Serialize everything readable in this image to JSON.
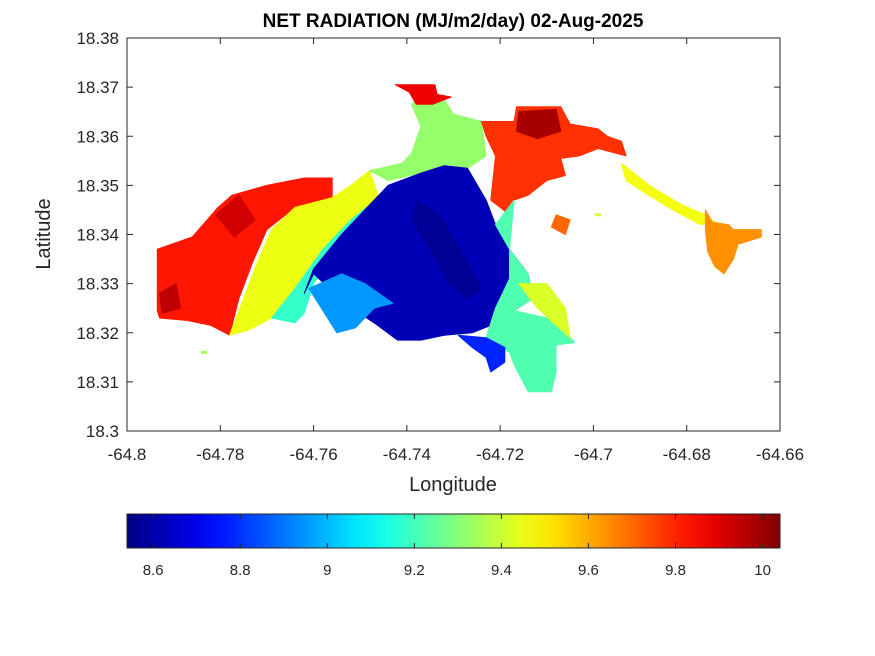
{
  "chart_data": {
    "type": "heatmap",
    "title": "NET RADIATION (MJ/m2/day) 02-Aug-2025",
    "xlabel": "Longitude",
    "ylabel": "Latitude",
    "xlim": [
      -64.8,
      -64.66
    ],
    "ylim": [
      18.3,
      18.38
    ],
    "x_ticks": [
      -64.8,
      -64.78,
      -64.76,
      -64.74,
      -64.72,
      -64.7,
      -64.68,
      -64.66
    ],
    "x_tick_labels": [
      "-64.8",
      "-64.78",
      "-64.76",
      "-64.74",
      "-64.72",
      "-64.7",
      "-64.68",
      "-64.66"
    ],
    "y_ticks": [
      18.3,
      18.31,
      18.32,
      18.33,
      18.34,
      18.35,
      18.36,
      18.37,
      18.38
    ],
    "y_tick_labels": [
      "18.3",
      "18.31",
      "18.32",
      "18.33",
      "18.34",
      "18.35",
      "18.36",
      "18.37",
      "18.38"
    ],
    "colormap": "jet",
    "color_range": [
      8.54,
      10.04
    ],
    "colorbar": {
      "location": "below",
      "ticks": [
        8.6,
        8.8,
        9.0,
        9.2,
        9.4,
        9.6,
        9.8,
        10.0
      ],
      "tick_labels": [
        "8.6",
        "8.8",
        "9",
        "9.2",
        "9.4",
        "9.6",
        "9.8",
        "10"
      ]
    },
    "grid": false,
    "regions": [
      {
        "name": "west",
        "value": 9.82,
        "polygon": [
          [
            -64.7935,
            18.3245
          ],
          [
            -64.7935,
            18.337
          ],
          [
            -64.786,
            18.3395
          ],
          [
            -64.7805,
            18.3455
          ],
          [
            -64.7775,
            18.348
          ],
          [
            -64.77,
            18.35
          ],
          [
            -64.762,
            18.3515
          ],
          [
            -64.756,
            18.3515
          ],
          [
            -64.756,
            18.3475
          ],
          [
            -64.764,
            18.3455
          ],
          [
            -64.77,
            18.341
          ],
          [
            -64.773,
            18.3345
          ],
          [
            -64.776,
            18.327
          ],
          [
            -64.778,
            18.3195
          ],
          [
            -64.782,
            18.3215
          ],
          [
            -64.787,
            18.3225
          ],
          [
            -64.793,
            18.323
          ]
        ]
      },
      {
        "name": "west-inner",
        "value": 9.95,
        "polygon": [
          [
            -64.793,
            18.328
          ],
          [
            -64.7895,
            18.33
          ],
          [
            -64.7885,
            18.325
          ],
          [
            -64.7925,
            18.324
          ]
        ]
      },
      {
        "name": "west-northwest",
        "value": 9.92,
        "polygon": [
          [
            -64.781,
            18.344
          ],
          [
            -64.776,
            18.348
          ],
          [
            -64.7725,
            18.343
          ],
          [
            -64.777,
            18.3395
          ]
        ]
      },
      {
        "name": "west-transition",
        "value": 9.45,
        "polygon": [
          [
            -64.778,
            18.3195
          ],
          [
            -64.775,
            18.327
          ],
          [
            -64.772,
            18.3345
          ],
          [
            -64.769,
            18.341
          ],
          [
            -64.764,
            18.3455
          ],
          [
            -64.756,
            18.3475
          ],
          [
            -64.752,
            18.35
          ],
          [
            -64.748,
            18.353
          ],
          [
            -64.746,
            18.3475
          ],
          [
            -64.752,
            18.343
          ],
          [
            -64.758,
            18.337
          ],
          [
            -64.764,
            18.329
          ],
          [
            -64.769,
            18.323
          ],
          [
            -64.774,
            18.3205
          ]
        ]
      },
      {
        "name": "west-cyan",
        "value": 9.18,
        "polygon": [
          [
            -64.769,
            18.323
          ],
          [
            -64.764,
            18.329
          ],
          [
            -64.758,
            18.337
          ],
          [
            -64.752,
            18.343
          ],
          [
            -64.746,
            18.3475
          ],
          [
            -64.744,
            18.35
          ],
          [
            -64.753,
            18.34
          ],
          [
            -64.76,
            18.33
          ],
          [
            -64.762,
            18.324
          ],
          [
            -64.764,
            18.322
          ]
        ]
      },
      {
        "name": "north-tab",
        "value": 9.32,
        "polygon": [
          [
            -64.748,
            18.353
          ],
          [
            -64.741,
            18.3545
          ],
          [
            -64.739,
            18.3565
          ],
          [
            -64.737,
            18.362
          ],
          [
            -64.739,
            18.3665
          ],
          [
            -64.736,
            18.369
          ],
          [
            -64.732,
            18.3675
          ],
          [
            -64.73,
            18.3645
          ],
          [
            -64.724,
            18.363
          ],
          [
            -64.723,
            18.356
          ],
          [
            -64.727,
            18.3535
          ],
          [
            -64.732,
            18.354
          ],
          [
            -64.737,
            18.3525
          ],
          [
            -64.744,
            18.351
          ]
        ]
      },
      {
        "name": "north-tip",
        "value": 9.88,
        "polygon": [
          [
            -64.7425,
            18.3705
          ],
          [
            -64.734,
            18.3705
          ],
          [
            -64.7335,
            18.3685
          ],
          [
            -64.7305,
            18.368
          ],
          [
            -64.7345,
            18.3665
          ],
          [
            -64.738,
            18.3665
          ],
          [
            -64.7395,
            18.369
          ]
        ]
      },
      {
        "name": "northeast",
        "value": 9.78,
        "polygon": [
          [
            -64.724,
            18.363
          ],
          [
            -64.717,
            18.363
          ],
          [
            -64.7165,
            18.366
          ],
          [
            -64.707,
            18.366
          ],
          [
            -64.705,
            18.3625
          ],
          [
            -64.699,
            18.3615
          ],
          [
            -64.697,
            18.36
          ],
          [
            -64.694,
            18.359
          ],
          [
            -64.693,
            18.356
          ],
          [
            -64.699,
            18.3575
          ],
          [
            -64.703,
            18.356
          ],
          [
            -64.707,
            18.3555
          ],
          [
            -64.706,
            18.352
          ],
          [
            -64.71,
            18.351
          ],
          [
            -64.714,
            18.348
          ],
          [
            -64.717,
            18.347
          ],
          [
            -64.718,
            18.344
          ],
          [
            -64.722,
            18.347
          ],
          [
            -64.721,
            18.356
          ],
          [
            -64.723,
            18.36
          ]
        ]
      },
      {
        "name": "northeast-peak",
        "value": 9.98,
        "polygon": [
          [
            -64.716,
            18.365
          ],
          [
            -64.708,
            18.3655
          ],
          [
            -64.707,
            18.361
          ],
          [
            -64.712,
            18.3595
          ],
          [
            -64.7165,
            18.361
          ]
        ]
      },
      {
        "name": "northeast-spur",
        "value": 9.7,
        "polygon": [
          [
            -64.708,
            18.344
          ],
          [
            -64.705,
            18.343
          ],
          [
            -64.706,
            18.34
          ],
          [
            -64.709,
            18.3415
          ]
        ]
      },
      {
        "name": "east-strip",
        "value": 9.46,
        "polygon": [
          [
            -64.694,
            18.3545
          ],
          [
            -64.688,
            18.35
          ],
          [
            -64.681,
            18.346
          ],
          [
            -64.676,
            18.344
          ],
          [
            -64.674,
            18.3425
          ],
          [
            -64.677,
            18.342
          ],
          [
            -64.683,
            18.345
          ],
          [
            -64.689,
            18.3485
          ],
          [
            -64.693,
            18.351
          ]
        ]
      },
      {
        "name": "east-lobe",
        "value": 9.64,
        "polygon": [
          [
            -64.676,
            18.345
          ],
          [
            -64.6745,
            18.3425
          ],
          [
            -64.671,
            18.342
          ],
          [
            -64.67,
            18.341
          ],
          [
            -64.664,
            18.341
          ],
          [
            -64.664,
            18.3395
          ],
          [
            -64.669,
            18.338
          ],
          [
            -64.67,
            18.335
          ],
          [
            -64.672,
            18.332
          ],
          [
            -64.674,
            18.3335
          ],
          [
            -64.6755,
            18.3365
          ],
          [
            -64.676,
            18.341
          ]
        ]
      },
      {
        "name": "core",
        "value": 8.62,
        "polygon": [
          [
            -64.744,
            18.35
          ],
          [
            -64.737,
            18.3525
          ],
          [
            -64.732,
            18.354
          ],
          [
            -64.727,
            18.3535
          ],
          [
            -64.723,
            18.347
          ],
          [
            -64.721,
            18.342
          ],
          [
            -64.718,
            18.337
          ],
          [
            -64.714,
            18.332
          ],
          [
            -64.713,
            18.327
          ],
          [
            -64.717,
            18.3245
          ],
          [
            -64.722,
            18.3215
          ],
          [
            -64.726,
            18.32
          ],
          [
            -64.732,
            18.3195
          ],
          [
            -64.737,
            18.3185
          ],
          [
            -64.742,
            18.3185
          ],
          [
            -64.747,
            18.322
          ],
          [
            -64.751,
            18.3245
          ],
          [
            -64.756,
            18.3285
          ],
          [
            -64.76,
            18.332
          ],
          [
            -64.762,
            18.328
          ],
          [
            -64.76,
            18.333
          ],
          [
            -64.754,
            18.34
          ],
          [
            -64.748,
            18.346
          ]
        ]
      },
      {
        "name": "core-dark",
        "value": 8.57,
        "polygon": [
          [
            -64.738,
            18.347
          ],
          [
            -64.733,
            18.344
          ],
          [
            -64.728,
            18.336
          ],
          [
            -64.724,
            18.329
          ],
          [
            -64.727,
            18.327
          ],
          [
            -64.731,
            18.33
          ],
          [
            -64.735,
            18.337
          ],
          [
            -64.739,
            18.343
          ]
        ]
      },
      {
        "name": "southeast-gradient",
        "value": 9.22,
        "polygon": [
          [
            -64.721,
            18.342
          ],
          [
            -64.718,
            18.337
          ],
          [
            -64.714,
            18.332
          ],
          [
            -64.713,
            18.327
          ],
          [
            -64.717,
            18.3245
          ],
          [
            -64.71,
            18.323
          ],
          [
            -64.706,
            18.32
          ],
          [
            -64.704,
            18.318
          ],
          [
            -64.708,
            18.3175
          ],
          [
            -64.708,
            18.312
          ],
          [
            -64.709,
            18.308
          ],
          [
            -64.714,
            18.308
          ],
          [
            -64.717,
            18.3135
          ],
          [
            -64.718,
            18.316
          ],
          [
            -64.723,
            18.319
          ],
          [
            -64.721,
            18.325
          ],
          [
            -64.718,
            18.331
          ],
          [
            -64.718,
            18.337
          ],
          [
            -64.717,
            18.347
          ]
        ]
      },
      {
        "name": "southeast-yellow",
        "value": 9.42,
        "polygon": [
          [
            -64.716,
            18.33
          ],
          [
            -64.712,
            18.325
          ],
          [
            -64.708,
            18.3215
          ],
          [
            -64.705,
            18.319
          ],
          [
            -64.706,
            18.325
          ],
          [
            -64.71,
            18.33
          ]
        ]
      },
      {
        "name": "south-arm",
        "value": 8.95,
        "polygon": [
          [
            -64.761,
            18.329
          ],
          [
            -64.758,
            18.3245
          ],
          [
            -64.755,
            18.32
          ],
          [
            -64.751,
            18.321
          ],
          [
            -64.747,
            18.325
          ],
          [
            -64.743,
            18.326
          ],
          [
            -64.749,
            18.33
          ],
          [
            -64.754,
            18.332
          ]
        ]
      },
      {
        "name": "south-blue-edge",
        "value": 8.78,
        "polygon": [
          [
            -64.729,
            18.3195
          ],
          [
            -64.726,
            18.317
          ],
          [
            -64.723,
            18.315
          ],
          [
            -64.722,
            18.312
          ],
          [
            -64.719,
            18.314
          ],
          [
            -64.719,
            18.317
          ],
          [
            -64.723,
            18.319
          ]
        ]
      }
    ],
    "outliers": [
      {
        "x": -64.7835,
        "y": 18.316,
        "value": 9.35
      },
      {
        "x": -64.699,
        "y": 18.344,
        "value": 9.4
      }
    ]
  }
}
